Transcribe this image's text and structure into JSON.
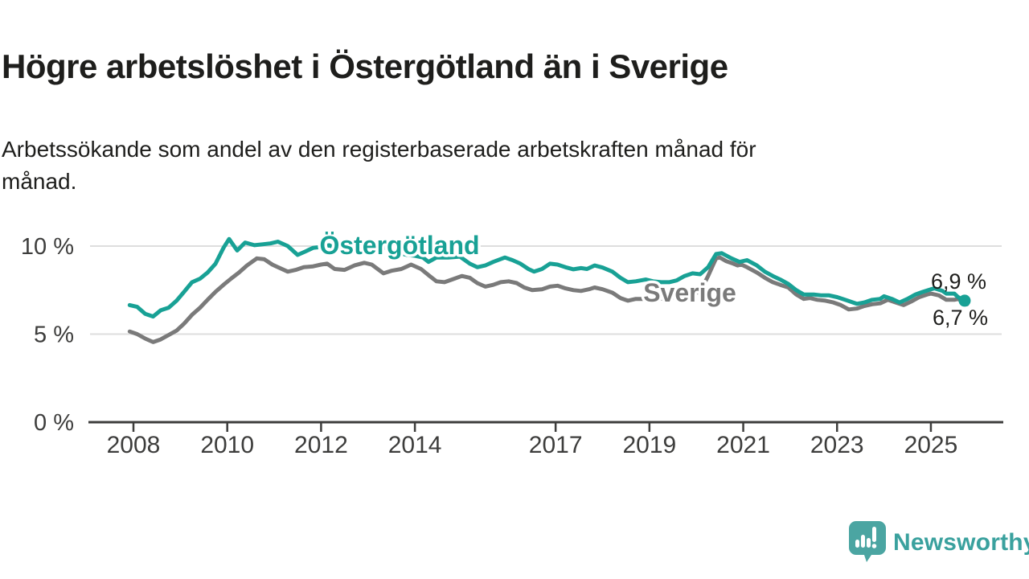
{
  "header": {
    "title": "Högre arbetslöshet i Östergötland än i Sverige",
    "subtitle_line1": "Arbetssökande som andel av den registerbaserade arbetskraften månad för",
    "subtitle_line2": "månad."
  },
  "footer": {
    "brand": "Newsworthy"
  },
  "colors": {
    "ostergotland_line": "#18a195",
    "sverige_line": "#7a7a7a",
    "gridline": "#dedede",
    "axis": "#3d3d3c",
    "text": "#1e1e1c",
    "brand_teal": "#4ba5a2",
    "brand_text_teal": "#3aa19e",
    "background": "#ffffff"
  },
  "chart_data": {
    "type": "line",
    "title": "Högre arbetslöshet i Östergötland än i Sverige",
    "xlabel": "",
    "ylabel": "Arbetssökande som andel av den registerbaserade arbetskraften",
    "unit": "%",
    "x_axis": {
      "tick_years": [
        2008,
        2010,
        2012,
        2014,
        2017,
        2019,
        2021,
        2023,
        2025
      ],
      "tick_labels": [
        "2008",
        "2010",
        "2012",
        "2014",
        "2017",
        "2019",
        "2021",
        "2023",
        "2025"
      ],
      "range": [
        2007.85,
        2025.85
      ]
    },
    "y_axis": {
      "tick_values": [
        0,
        5,
        10
      ],
      "tick_labels": [
        "0 %",
        "5 %",
        "10 %"
      ],
      "gridline_values": [
        5,
        10
      ],
      "range": [
        0,
        11.6
      ],
      "grid": true
    },
    "legend_position": "inline-labels",
    "series": [
      {
        "name": "Sverige",
        "color": "#7a7a7a",
        "end_label": "6,7 %",
        "end_value": 6.7,
        "end_dot": false,
        "points": [
          [
            2007.92,
            5.15
          ],
          [
            2008.08,
            5.0
          ],
          [
            2008.25,
            4.75
          ],
          [
            2008.42,
            4.55
          ],
          [
            2008.58,
            4.7
          ],
          [
            2008.75,
            4.95
          ],
          [
            2008.92,
            5.2
          ],
          [
            2009.08,
            5.6
          ],
          [
            2009.25,
            6.1
          ],
          [
            2009.42,
            6.5
          ],
          [
            2009.58,
            6.95
          ],
          [
            2009.75,
            7.4
          ],
          [
            2009.92,
            7.8
          ],
          [
            2010.08,
            8.15
          ],
          [
            2010.25,
            8.5
          ],
          [
            2010.42,
            8.9
          ],
          [
            2010.63,
            9.3
          ],
          [
            2010.79,
            9.25
          ],
          [
            2010.96,
            8.95
          ],
          [
            2011.08,
            8.8
          ],
          [
            2011.29,
            8.55
          ],
          [
            2011.46,
            8.65
          ],
          [
            2011.63,
            8.8
          ],
          [
            2011.83,
            8.85
          ],
          [
            2012.0,
            8.95
          ],
          [
            2012.13,
            9.0
          ],
          [
            2012.29,
            8.7
          ],
          [
            2012.5,
            8.65
          ],
          [
            2012.71,
            8.9
          ],
          [
            2012.92,
            9.05
          ],
          [
            2013.08,
            8.95
          ],
          [
            2013.33,
            8.45
          ],
          [
            2013.5,
            8.6
          ],
          [
            2013.71,
            8.7
          ],
          [
            2013.92,
            8.95
          ],
          [
            2014.13,
            8.7
          ],
          [
            2014.29,
            8.35
          ],
          [
            2014.46,
            8.0
          ],
          [
            2014.63,
            7.95
          ],
          [
            2014.79,
            8.1
          ],
          [
            2015.0,
            8.3
          ],
          [
            2015.17,
            8.2
          ],
          [
            2015.33,
            7.9
          ],
          [
            2015.5,
            7.7
          ],
          [
            2015.67,
            7.8
          ],
          [
            2015.83,
            7.95
          ],
          [
            2016.0,
            8.0
          ],
          [
            2016.17,
            7.9
          ],
          [
            2016.33,
            7.65
          ],
          [
            2016.5,
            7.5
          ],
          [
            2016.71,
            7.55
          ],
          [
            2016.88,
            7.7
          ],
          [
            2017.04,
            7.75
          ],
          [
            2017.21,
            7.6
          ],
          [
            2017.38,
            7.5
          ],
          [
            2017.54,
            7.45
          ],
          [
            2017.71,
            7.55
          ],
          [
            2017.83,
            7.65
          ],
          [
            2018.0,
            7.55
          ],
          [
            2018.21,
            7.35
          ],
          [
            2018.38,
            7.05
          ],
          [
            2018.54,
            6.9
          ],
          [
            2018.71,
            7.0
          ],
          [
            2018.92,
            7.0
          ],
          [
            2019.17,
            7.0
          ],
          [
            2019.42,
            7.05
          ],
          [
            2019.67,
            7.15
          ],
          [
            2019.92,
            7.3
          ],
          [
            2020.08,
            7.4
          ],
          [
            2020.25,
            8.3
          ],
          [
            2020.42,
            9.3
          ],
          [
            2020.5,
            9.35
          ],
          [
            2020.63,
            9.15
          ],
          [
            2020.79,
            9.0
          ],
          [
            2020.88,
            8.9
          ],
          [
            2020.96,
            8.95
          ],
          [
            2021.08,
            8.8
          ],
          [
            2021.29,
            8.5
          ],
          [
            2021.46,
            8.2
          ],
          [
            2021.63,
            7.95
          ],
          [
            2021.79,
            7.8
          ],
          [
            2021.96,
            7.65
          ],
          [
            2022.13,
            7.25
          ],
          [
            2022.29,
            7.0
          ],
          [
            2022.42,
            7.05
          ],
          [
            2022.58,
            6.95
          ],
          [
            2022.75,
            6.9
          ],
          [
            2022.92,
            6.8
          ],
          [
            2023.08,
            6.65
          ],
          [
            2023.25,
            6.4
          ],
          [
            2023.42,
            6.45
          ],
          [
            2023.58,
            6.6
          ],
          [
            2023.75,
            6.7
          ],
          [
            2023.92,
            6.75
          ],
          [
            2024.08,
            6.95
          ],
          [
            2024.25,
            6.8
          ],
          [
            2024.42,
            6.65
          ],
          [
            2024.58,
            6.85
          ],
          [
            2024.75,
            7.1
          ],
          [
            2024.92,
            7.25
          ],
          [
            2025.0,
            7.3
          ],
          [
            2025.17,
            7.2
          ],
          [
            2025.33,
            6.95
          ],
          [
            2025.5,
            6.95
          ],
          [
            2025.58,
            7.0
          ],
          [
            2025.77,
            6.7
          ]
        ]
      },
      {
        "name": "Östergötland",
        "color": "#18a195",
        "end_label": "6,9 %",
        "end_value": 6.9,
        "end_dot": true,
        "points": [
          [
            2007.92,
            6.65
          ],
          [
            2008.08,
            6.55
          ],
          [
            2008.25,
            6.15
          ],
          [
            2008.42,
            6.0
          ],
          [
            2008.58,
            6.35
          ],
          [
            2008.75,
            6.5
          ],
          [
            2008.92,
            6.9
          ],
          [
            2009.08,
            7.4
          ],
          [
            2009.25,
            7.95
          ],
          [
            2009.42,
            8.15
          ],
          [
            2009.58,
            8.5
          ],
          [
            2009.75,
            9.0
          ],
          [
            2009.92,
            9.9
          ],
          [
            2010.04,
            10.4
          ],
          [
            2010.21,
            9.75
          ],
          [
            2010.38,
            10.2
          ],
          [
            2010.58,
            10.05
          ],
          [
            2010.75,
            10.1
          ],
          [
            2010.92,
            10.15
          ],
          [
            2011.08,
            10.25
          ],
          [
            2011.29,
            10.0
          ],
          [
            2011.5,
            9.5
          ],
          [
            2011.67,
            9.7
          ],
          [
            2011.83,
            9.9
          ],
          [
            2012.0,
            9.95
          ],
          [
            2012.17,
            10.05
          ],
          [
            2012.33,
            9.85
          ],
          [
            2012.5,
            9.7
          ],
          [
            2012.67,
            9.9
          ],
          [
            2012.83,
            10.0
          ],
          [
            2013.0,
            10.15
          ],
          [
            2013.13,
            10.2
          ],
          [
            2013.33,
            9.95
          ],
          [
            2013.5,
            9.75
          ],
          [
            2013.67,
            9.6
          ],
          [
            2013.83,
            9.5
          ],
          [
            2014.0,
            9.45
          ],
          [
            2014.17,
            9.35
          ],
          [
            2014.29,
            9.1
          ],
          [
            2014.46,
            9.35
          ],
          [
            2014.71,
            9.35
          ],
          [
            2014.96,
            9.4
          ],
          [
            2015.17,
            9.0
          ],
          [
            2015.33,
            8.8
          ],
          [
            2015.5,
            8.9
          ],
          [
            2015.67,
            9.1
          ],
          [
            2015.92,
            9.35
          ],
          [
            2016.08,
            9.2
          ],
          [
            2016.25,
            9.0
          ],
          [
            2016.42,
            8.7
          ],
          [
            2016.54,
            8.55
          ],
          [
            2016.71,
            8.7
          ],
          [
            2016.88,
            9.0
          ],
          [
            2017.04,
            8.95
          ],
          [
            2017.21,
            8.8
          ],
          [
            2017.38,
            8.68
          ],
          [
            2017.54,
            8.75
          ],
          [
            2017.67,
            8.7
          ],
          [
            2017.83,
            8.9
          ],
          [
            2018.0,
            8.78
          ],
          [
            2018.21,
            8.55
          ],
          [
            2018.38,
            8.2
          ],
          [
            2018.54,
            7.95
          ],
          [
            2018.71,
            8.0
          ],
          [
            2018.92,
            8.1
          ],
          [
            2019.08,
            8.0
          ],
          [
            2019.25,
            7.95
          ],
          [
            2019.42,
            7.95
          ],
          [
            2019.58,
            8.05
          ],
          [
            2019.75,
            8.3
          ],
          [
            2019.92,
            8.45
          ],
          [
            2020.08,
            8.4
          ],
          [
            2020.25,
            8.8
          ],
          [
            2020.42,
            9.55
          ],
          [
            2020.54,
            9.6
          ],
          [
            2020.75,
            9.3
          ],
          [
            2020.92,
            9.1
          ],
          [
            2021.08,
            9.2
          ],
          [
            2021.29,
            8.9
          ],
          [
            2021.46,
            8.55
          ],
          [
            2021.63,
            8.3
          ],
          [
            2021.79,
            8.1
          ],
          [
            2021.96,
            7.85
          ],
          [
            2022.13,
            7.5
          ],
          [
            2022.29,
            7.25
          ],
          [
            2022.5,
            7.25
          ],
          [
            2022.67,
            7.2
          ],
          [
            2022.83,
            7.2
          ],
          [
            2023.0,
            7.1
          ],
          [
            2023.17,
            6.95
          ],
          [
            2023.42,
            6.72
          ],
          [
            2023.58,
            6.8
          ],
          [
            2023.75,
            6.95
          ],
          [
            2023.92,
            7.0
          ],
          [
            2024.0,
            7.15
          ],
          [
            2024.17,
            7.0
          ],
          [
            2024.33,
            6.8
          ],
          [
            2024.5,
            7.0
          ],
          [
            2024.67,
            7.25
          ],
          [
            2024.83,
            7.4
          ],
          [
            2025.0,
            7.55
          ],
          [
            2025.08,
            7.6
          ],
          [
            2025.25,
            7.45
          ],
          [
            2025.33,
            7.3
          ],
          [
            2025.5,
            7.3
          ],
          [
            2025.58,
            7.1
          ],
          [
            2025.72,
            6.9
          ]
        ]
      }
    ]
  }
}
